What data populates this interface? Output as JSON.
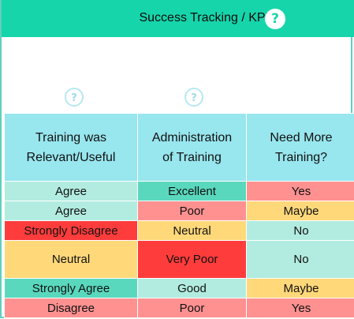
{
  "header": {
    "title": "Success Tracking / KPI",
    "help_glyph": "?"
  },
  "column_help_glyph": "?",
  "table": {
    "columns": [
      [
        "Training was",
        "Relevant/Useful"
      ],
      [
        "Administration",
        "of Training"
      ],
      [
        "Need More",
        "Training?"
      ]
    ],
    "rows": [
      [
        {
          "text": "Agree",
          "tone": "green-light"
        },
        {
          "text": "Excellent",
          "tone": "green-dark"
        },
        {
          "text": "Yes",
          "tone": "red-light"
        }
      ],
      [
        {
          "text": "Agree",
          "tone": "green-light"
        },
        {
          "text": "Poor",
          "tone": "red-light"
        },
        {
          "text": "Maybe",
          "tone": "yellow"
        }
      ],
      [
        {
          "text": "Strongly Disagree",
          "tone": "red-dark"
        },
        {
          "text": "Neutral",
          "tone": "yellow"
        },
        {
          "text": "No",
          "tone": "green-light"
        }
      ],
      [
        {
          "text": "Neutral",
          "tone": "yellow"
        },
        {
          "text": "Very Poor",
          "tone": "red-dark"
        },
        {
          "text": "No",
          "tone": "green-light"
        }
      ],
      [
        {
          "text": "Strongly Agree",
          "tone": "green-dark"
        },
        {
          "text": "Good",
          "tone": "green-light"
        },
        {
          "text": "Maybe",
          "tone": "yellow"
        }
      ],
      [
        {
          "text": "Disagree",
          "tone": "red-light"
        },
        {
          "text": "Poor",
          "tone": "red-light"
        },
        {
          "text": "Yes",
          "tone": "red-light"
        }
      ]
    ]
  },
  "colors": {
    "header_green": "#17d5ab",
    "column_header_blue": "#98e6ee",
    "green_dark": "#5ad8bd",
    "green_light": "#b2ece0",
    "red_dark": "#ff3c3c",
    "red_light": "#ff9191",
    "yellow": "#ffd87a"
  }
}
